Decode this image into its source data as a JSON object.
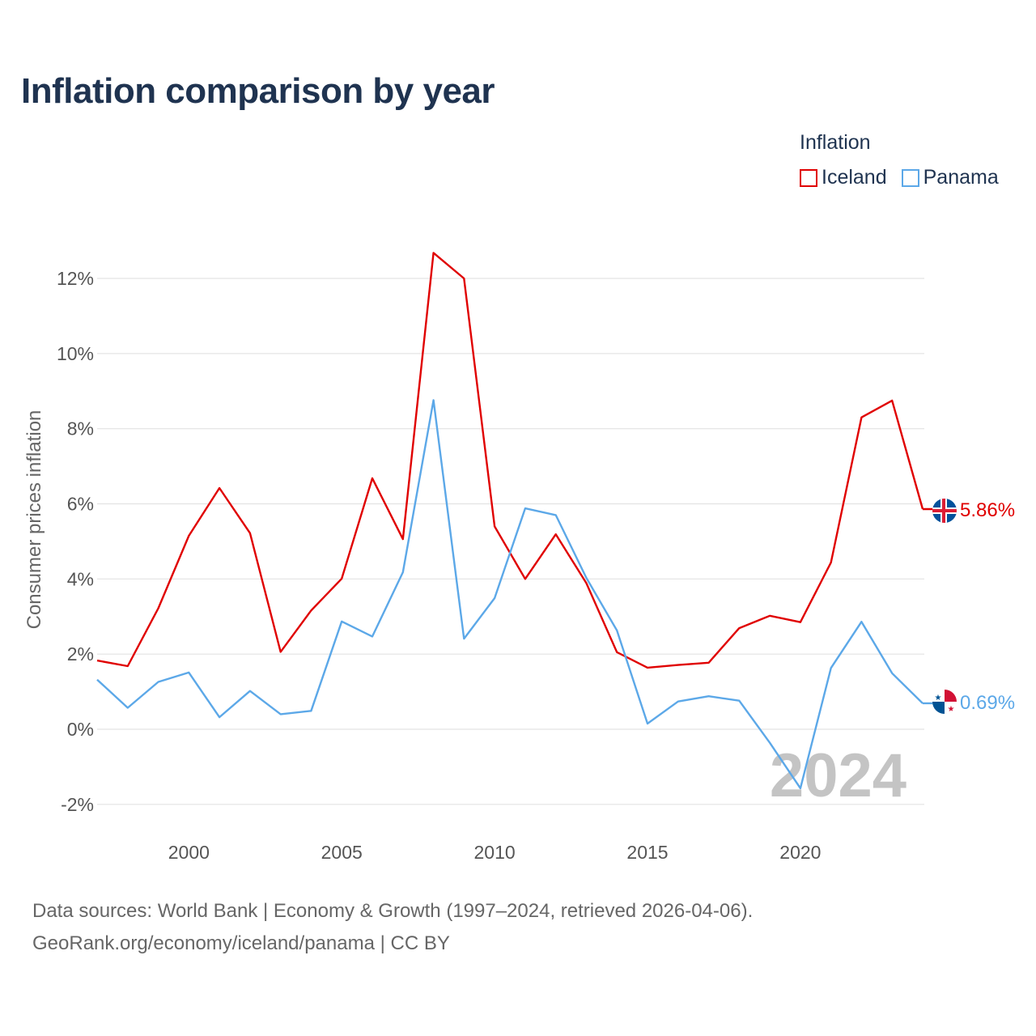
{
  "chart_data": {
    "type": "line",
    "title": "Inflation comparison by year",
    "legend_title": "Inflation",
    "legend_position": "top-right",
    "ylabel": "Consumer prices inflation",
    "xlabel": "",
    "xlim": [
      1997,
      2024
    ],
    "ylim": [
      -3,
      13
    ],
    "y_ticks": [
      -2,
      0,
      2,
      4,
      6,
      8,
      10,
      12
    ],
    "y_tick_labels": [
      "-2%",
      "0%",
      "2%",
      "4%",
      "6%",
      "8%",
      "10%",
      "12%"
    ],
    "x_ticks": [
      2000,
      2005,
      2010,
      2015,
      2020
    ],
    "x_tick_labels": [
      "2000",
      "2005",
      "2010",
      "2015",
      "2020"
    ],
    "grid": true,
    "watermark_year": "2024",
    "x": [
      1997,
      1998,
      1999,
      2000,
      2001,
      2002,
      2003,
      2004,
      2005,
      2006,
      2007,
      2008,
      2009,
      2010,
      2011,
      2012,
      2013,
      2014,
      2015,
      2016,
      2017,
      2018,
      2019,
      2020,
      2021,
      2022,
      2023,
      2024
    ],
    "series": [
      {
        "name": "Iceland",
        "color": "#e00000",
        "end_label": "5.86%",
        "values": [
          1.83,
          1.68,
          3.22,
          5.15,
          6.42,
          5.22,
          2.06,
          3.16,
          4.01,
          6.68,
          5.06,
          12.68,
          12.0,
          5.4,
          4.0,
          5.19,
          3.89,
          2.05,
          1.64,
          1.71,
          1.77,
          2.69,
          3.02,
          2.85,
          4.44,
          8.3,
          8.75,
          5.86
        ]
      },
      {
        "name": "Panama",
        "color": "#5ca8e8",
        "end_label": "0.69%",
        "values": [
          1.32,
          0.57,
          1.26,
          1.51,
          0.32,
          1.02,
          0.4,
          0.49,
          2.87,
          2.47,
          4.18,
          8.76,
          2.41,
          3.49,
          5.88,
          5.7,
          4.03,
          2.63,
          0.15,
          0.74,
          0.88,
          0.76,
          -0.36,
          -1.57,
          1.63,
          2.86,
          1.49,
          0.69
        ]
      }
    ]
  },
  "source": {
    "line1": "Data sources: World Bank | Economy & Growth (1997–2024, retrieved 2026-04-06).",
    "line2": "GeoRank.org/economy/iceland/panama | CC BY"
  }
}
